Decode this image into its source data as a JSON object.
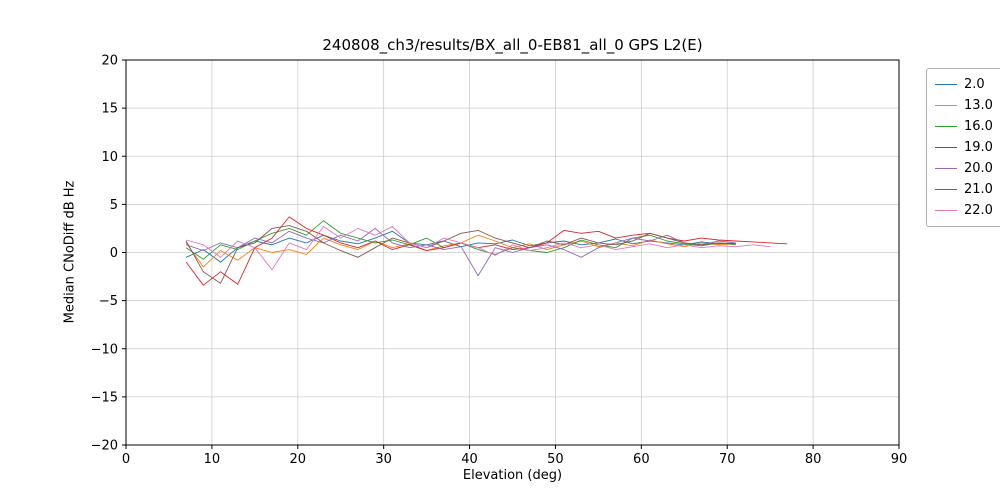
{
  "chart_data": {
    "type": "line",
    "title": "240808_ch3/results/BX_all_0-EB81_all_0 GPS L2(E)",
    "xlabel": "Elevation (deg)",
    "ylabel": "Median CNoDiff dB Hz",
    "xlim": [
      0,
      90
    ],
    "ylim": [
      -20,
      20
    ],
    "xticks": [
      0,
      10,
      20,
      30,
      40,
      50,
      60,
      70,
      80,
      90
    ],
    "yticks": [
      -20,
      -15,
      -10,
      -5,
      0,
      5,
      10,
      15,
      20
    ],
    "grid": true,
    "grid_color": "#cccccc",
    "legend_position": "outside-right",
    "series": [
      {
        "name": "2.0",
        "color": "#1f77b4",
        "x": [
          7,
          9,
          11,
          13,
          15,
          17,
          19,
          21,
          23,
          25,
          27,
          29,
          31,
          33,
          35,
          37,
          39,
          41,
          43,
          45,
          47,
          49,
          51,
          53,
          55,
          57,
          59,
          61,
          63,
          65,
          67,
          69,
          71
        ],
        "y": [
          -0.5,
          0.3,
          -1.0,
          0.5,
          1.2,
          0.8,
          1.5,
          1.0,
          1.8,
          1.2,
          0.9,
          1.5,
          2.2,
          1.0,
          0.8,
          1.2,
          0.6,
          1.0,
          0.9,
          1.3,
          0.7,
          1.0,
          1.2,
          0.8,
          1.0,
          1.4,
          0.9,
          1.2,
          1.0,
          0.8,
          1.1,
          0.9,
          1.0
        ]
      },
      {
        "name": "13.0",
        "color": "#ff7f0e",
        "x": [
          7,
          9,
          11,
          13,
          15,
          17,
          19,
          21,
          23,
          25,
          27,
          29,
          31,
          33,
          35,
          37,
          39,
          41,
          43,
          45,
          47,
          49,
          51,
          53,
          55,
          57,
          59,
          61,
          63,
          65,
          67,
          69,
          71
        ],
        "y": [
          1.0,
          -1.5,
          0.2,
          -0.8,
          0.5,
          0.0,
          0.3,
          -0.2,
          1.5,
          0.8,
          0.3,
          1.2,
          0.5,
          0.9,
          0.2,
          0.7,
          1.0,
          1.8,
          1.2,
          0.5,
          0.9,
          0.3,
          0.8,
          1.2,
          0.6,
          1.0,
          0.7,
          1.3,
          0.9,
          0.6,
          1.0,
          0.8,
          0.9
        ]
      },
      {
        "name": "16.0",
        "color": "#2ca02c",
        "x": [
          7,
          9,
          11,
          13,
          15,
          17,
          19,
          21,
          23,
          25,
          27,
          29,
          31,
          33,
          35,
          37,
          39,
          41,
          43,
          45,
          47,
          49,
          51,
          53,
          55,
          57,
          59,
          61,
          63,
          65,
          67,
          69,
          71
        ],
        "y": [
          0.5,
          -0.7,
          0.8,
          0.3,
          1.2,
          2.0,
          2.5,
          1.8,
          3.3,
          2.0,
          1.5,
          1.0,
          1.3,
          0.8,
          1.5,
          0.5,
          1.0,
          0.3,
          -0.2,
          0.5,
          0.2,
          0.0,
          0.5,
          1.3,
          0.8,
          0.5,
          1.5,
          1.8,
          1.2,
          0.9,
          0.7,
          1.0,
          0.8
        ]
      },
      {
        "name": "19.0",
        "color": "#d62728",
        "x": [
          7,
          9,
          11,
          13,
          15,
          17,
          19,
          21,
          23,
          25,
          27,
          29,
          31,
          33,
          35,
          37,
          39,
          41,
          43,
          45,
          47,
          49,
          51,
          53,
          55,
          57,
          59,
          61,
          63,
          65,
          67,
          69,
          71,
          73,
          75,
          77
        ],
        "y": [
          -1.0,
          -3.4,
          -2.0,
          -3.3,
          0.5,
          1.5,
          3.7,
          2.5,
          1.8,
          1.0,
          0.5,
          1.2,
          0.3,
          0.8,
          0.2,
          0.5,
          1.0,
          0.5,
          0.8,
          0.3,
          0.5,
          1.0,
          2.3,
          2.0,
          2.2,
          1.5,
          1.8,
          2.0,
          1.5,
          1.2,
          1.5,
          1.3,
          1.2,
          1.1,
          1.0,
          0.9
        ]
      },
      {
        "name": "20.0",
        "color": "#9467bd",
        "x": [
          7,
          9,
          11,
          13,
          15,
          17,
          19,
          21,
          23,
          25,
          27,
          29,
          31,
          33,
          35,
          37,
          39,
          41,
          43,
          45,
          47,
          49,
          51,
          53,
          55,
          57,
          59,
          61,
          63,
          65,
          67,
          69,
          71
        ],
        "y": [
          0.8,
          0.2,
          1.0,
          0.5,
          1.5,
          1.0,
          2.2,
          1.5,
          1.0,
          1.8,
          1.2,
          2.5,
          1.0,
          0.5,
          0.8,
          0.3,
          0.6,
          -2.4,
          0.5,
          0.0,
          0.5,
          0.8,
          0.3,
          -0.5,
          0.5,
          1.0,
          1.5,
          1.2,
          1.8,
          1.0,
          0.8,
          1.2,
          1.0
        ]
      },
      {
        "name": "21.0",
        "color": "#8c564b",
        "x": [
          7,
          9,
          11,
          13,
          15,
          17,
          19,
          21,
          23,
          25,
          27,
          29,
          31,
          33,
          35,
          37,
          39,
          41,
          43,
          45,
          47,
          49,
          51,
          53,
          55,
          57,
          59,
          61,
          63,
          65,
          67,
          69,
          71
        ],
        "y": [
          1.2,
          -2.0,
          -3.2,
          0.5,
          1.0,
          2.5,
          2.8,
          2.2,
          1.0,
          0.2,
          -0.5,
          0.5,
          1.5,
          1.0,
          0.5,
          1.2,
          2.0,
          2.3,
          1.5,
          1.0,
          0.5,
          1.2,
          0.8,
          1.5,
          1.0,
          0.8,
          1.2,
          2.0,
          1.5,
          1.0,
          0.8,
          1.0,
          0.9
        ]
      },
      {
        "name": "22.0",
        "color": "#e377c2",
        "x": [
          7,
          9,
          11,
          13,
          15,
          17,
          19,
          21,
          23,
          25,
          27,
          29,
          31,
          33,
          35,
          37,
          39,
          41,
          43,
          45,
          47,
          49,
          51,
          53,
          55,
          57,
          59,
          61,
          63,
          65,
          67,
          69,
          71,
          73,
          75
        ],
        "y": [
          1.3,
          0.8,
          -0.5,
          1.2,
          0.5,
          -1.8,
          1.0,
          0.3,
          2.7,
          1.5,
          2.5,
          1.8,
          2.7,
          1.0,
          0.5,
          1.5,
          1.0,
          0.5,
          -0.3,
          0.8,
          0.2,
          0.5,
          1.0,
          0.5,
          0.8,
          0.3,
          0.6,
          0.9,
          0.5,
          0.8,
          0.5,
          0.7,
          0.6,
          0.8,
          0.6
        ]
      }
    ]
  }
}
